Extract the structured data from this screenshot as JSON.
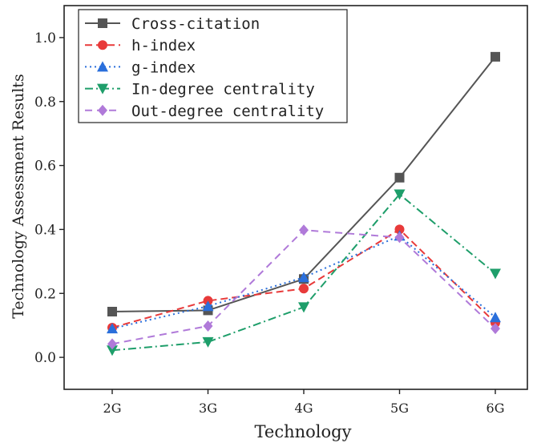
{
  "chart_data": {
    "type": "line",
    "categories": [
      "2G",
      "3G",
      "4G",
      "5G",
      "6G"
    ],
    "xlabel": "Technology",
    "ylabel": "Technology Assessment Results",
    "ylim": [
      -0.1,
      1.1
    ],
    "yticks": [
      "0.0",
      "0.2",
      "0.4",
      "0.6",
      "0.8",
      "1.0"
    ],
    "grid": false,
    "legend_position": "top-left",
    "series": [
      {
        "name": "Cross-citation",
        "values": [
          0.143,
          0.147,
          0.245,
          0.562,
          0.94
        ],
        "color": "#555555",
        "marker": "square",
        "dash": "solid"
      },
      {
        "name": "h-index",
        "values": [
          0.093,
          0.177,
          0.215,
          0.4,
          0.108
        ],
        "color": "#e83a3a",
        "marker": "circle",
        "dash": "dash"
      },
      {
        "name": "g-index",
        "values": [
          0.09,
          0.16,
          0.25,
          0.38,
          0.125
        ],
        "color": "#2a6fdb",
        "marker": "triangle-up",
        "dash": "dot"
      },
      {
        "name": "In-degree centrality",
        "values": [
          0.022,
          0.048,
          0.157,
          0.51,
          0.262
        ],
        "color": "#1e9e6a",
        "marker": "triangle-down",
        "dash": "dashdot"
      },
      {
        "name": "Out-degree centrality",
        "values": [
          0.042,
          0.098,
          0.398,
          0.375,
          0.09
        ],
        "color": "#b07ad9",
        "marker": "diamond",
        "dash": "longdash"
      }
    ]
  }
}
